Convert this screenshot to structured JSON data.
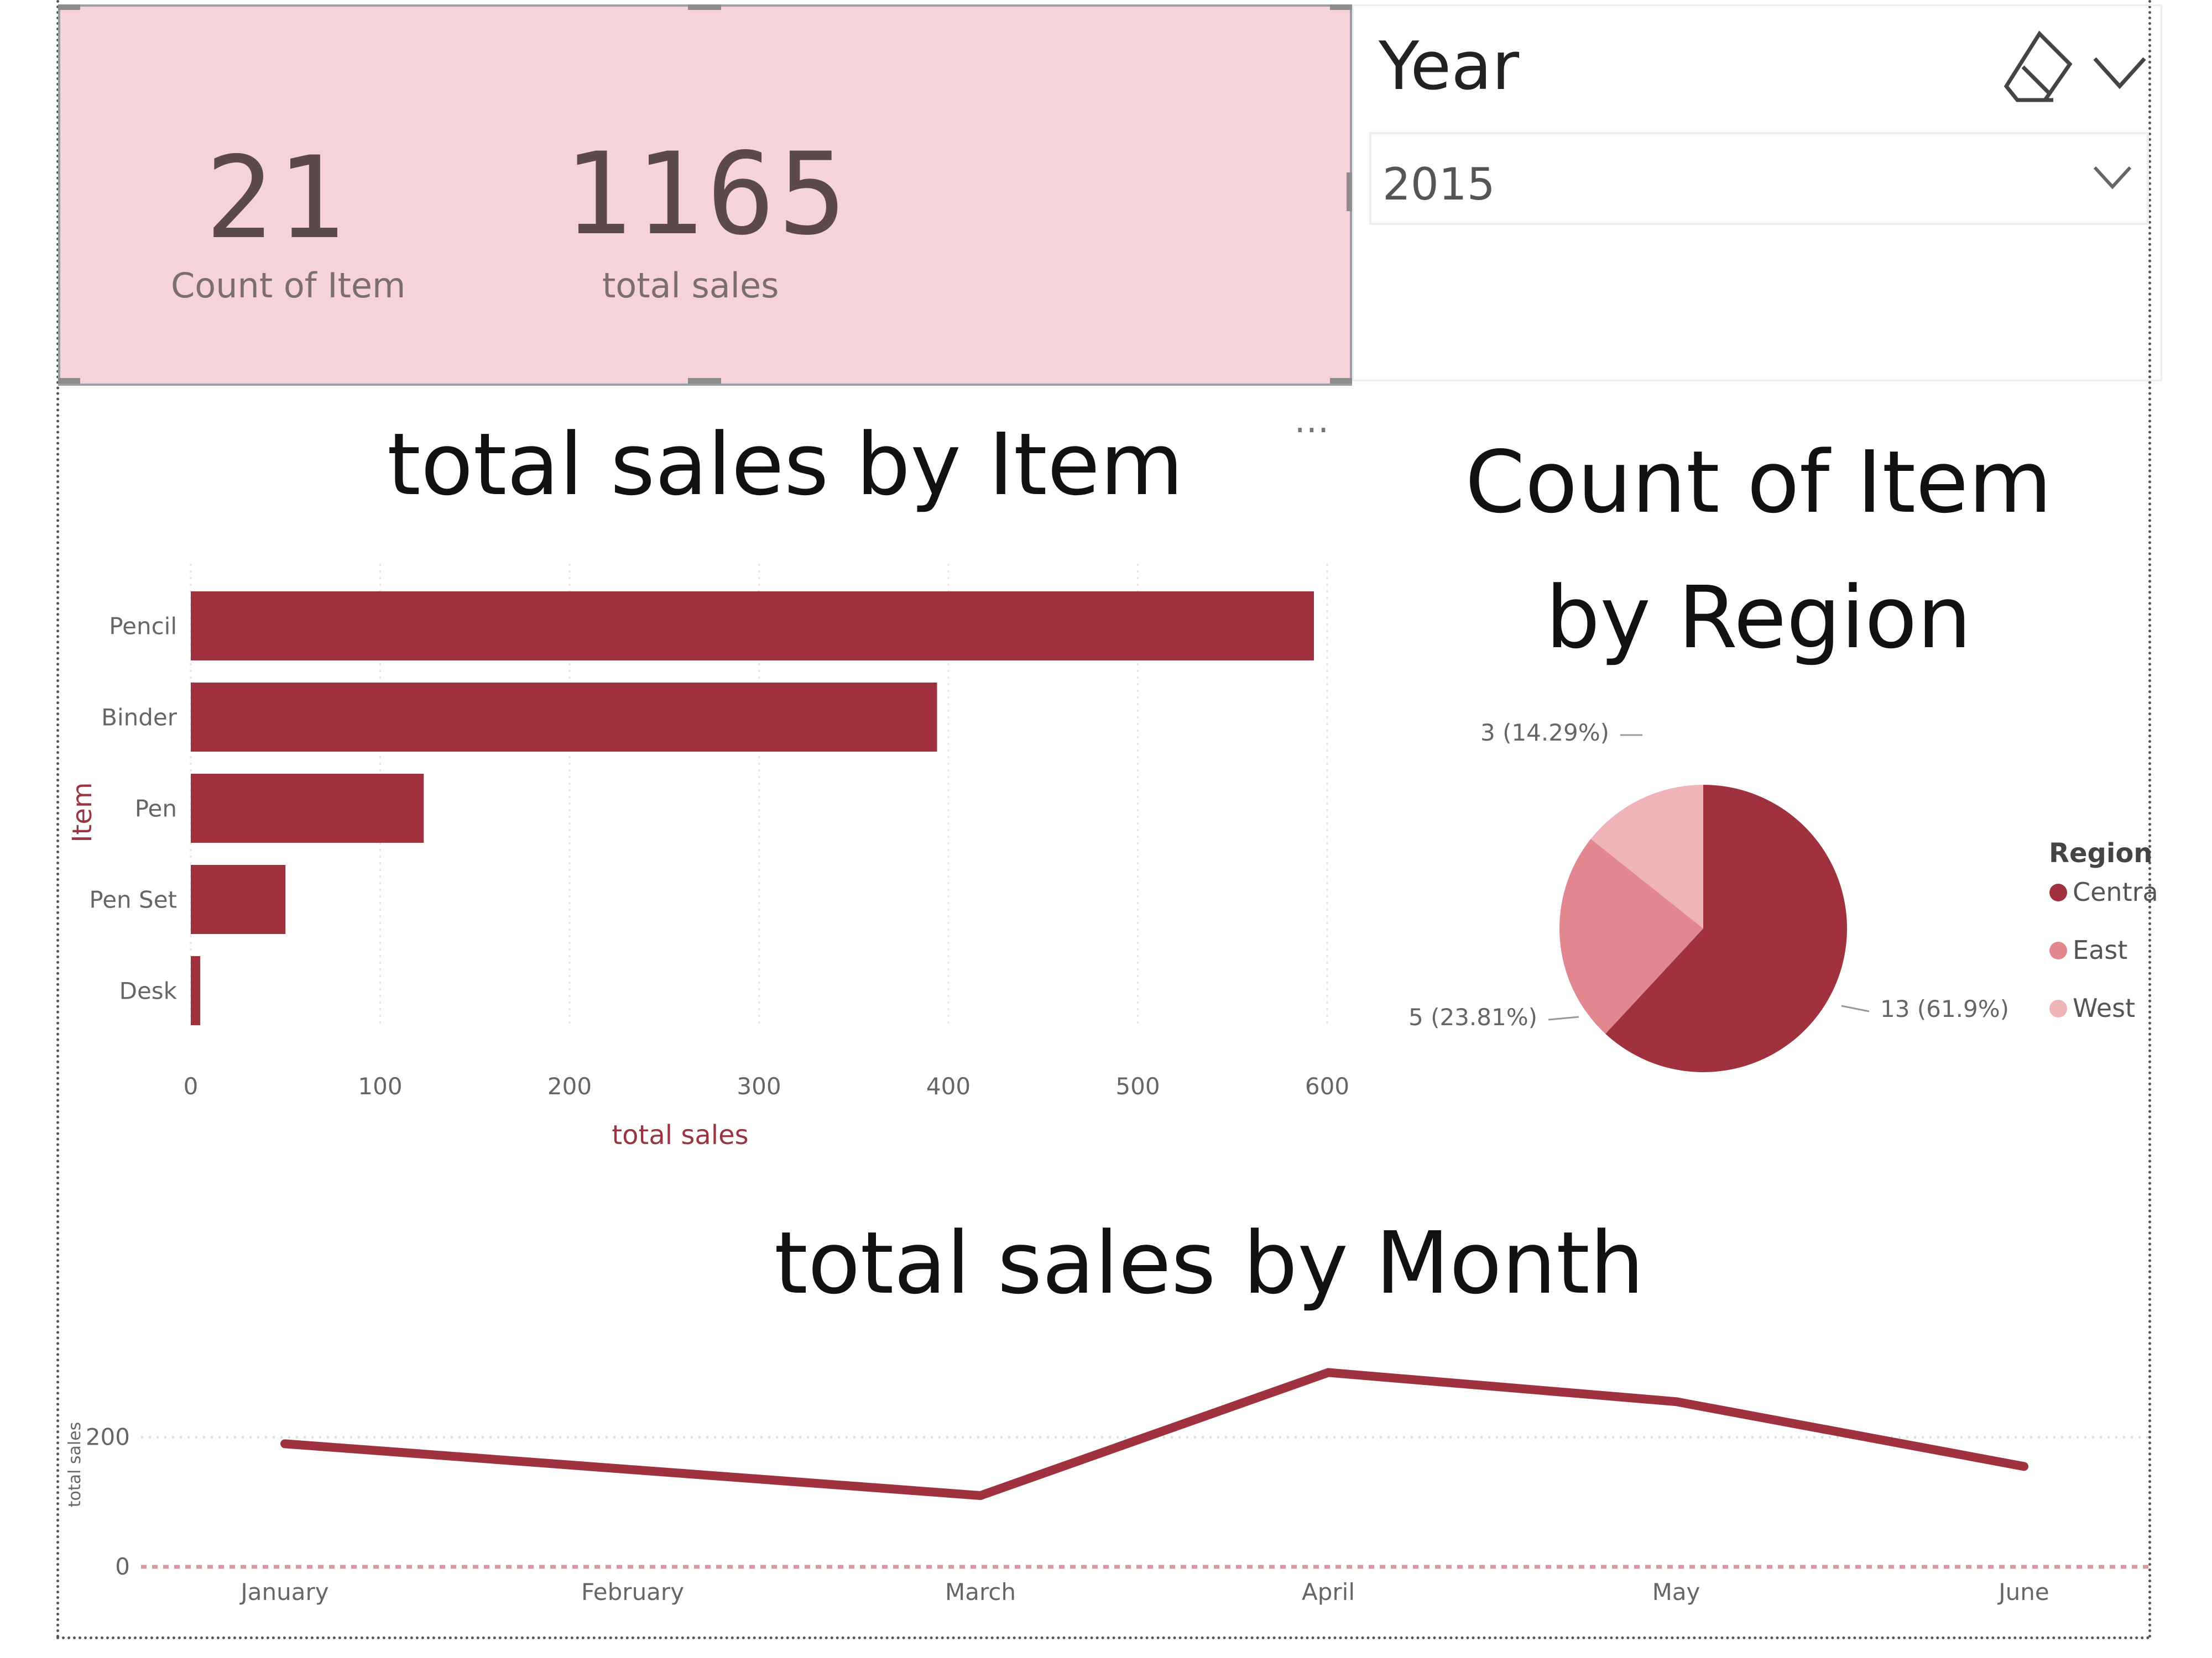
{
  "kpis": [
    {
      "value": "21",
      "label": "Count of Item"
    },
    {
      "value": "1165",
      "label": "total sales"
    }
  ],
  "slicer": {
    "title": "Year",
    "selected": "2015",
    "eraser_icon": "eraser-icon",
    "collapse_icon": "chevron-down-icon"
  },
  "colors": {
    "primary": "#a0323f",
    "east": "#e2868f",
    "west": "#efb4b8",
    "kpi_bg": "#f6d3d8"
  },
  "visual_menu": "⋯",
  "chart_data": [
    {
      "type": "bar",
      "orientation": "horizontal",
      "title": "total sales by Item",
      "xlabel": "total sales",
      "ylabel": "Item",
      "categories": [
        "Pencil",
        "Binder",
        "Pen",
        "Pen Set",
        "Desk"
      ],
      "values": [
        593,
        394,
        123,
        50,
        5
      ],
      "xlim": [
        0,
        600
      ],
      "xticks": [
        "0",
        "100",
        "200",
        "300",
        "400",
        "500",
        "600"
      ]
    },
    {
      "type": "pie",
      "title": "Count of Item by Region",
      "legend_title": "Region",
      "legend_position": "right",
      "slices": [
        {
          "label": "Central",
          "value": 13,
          "data_label": "13 (61.9%)"
        },
        {
          "label": "East",
          "value": 5,
          "data_label": "5 (23.81%)"
        },
        {
          "label": "West",
          "value": 3,
          "data_label": "3 (14.29%)"
        }
      ]
    },
    {
      "type": "line",
      "title": "total sales by Month",
      "ylabel": "total sales",
      "categories": [
        "January",
        "February",
        "March",
        "April",
        "May",
        "June"
      ],
      "values": [
        190,
        150,
        110,
        300,
        255,
        155
      ],
      "x_positions": [
        0,
        1,
        2,
        3,
        4,
        5
      ],
      "yticks": [
        "0",
        "200"
      ],
      "ylim": [
        0,
        320
      ]
    }
  ]
}
